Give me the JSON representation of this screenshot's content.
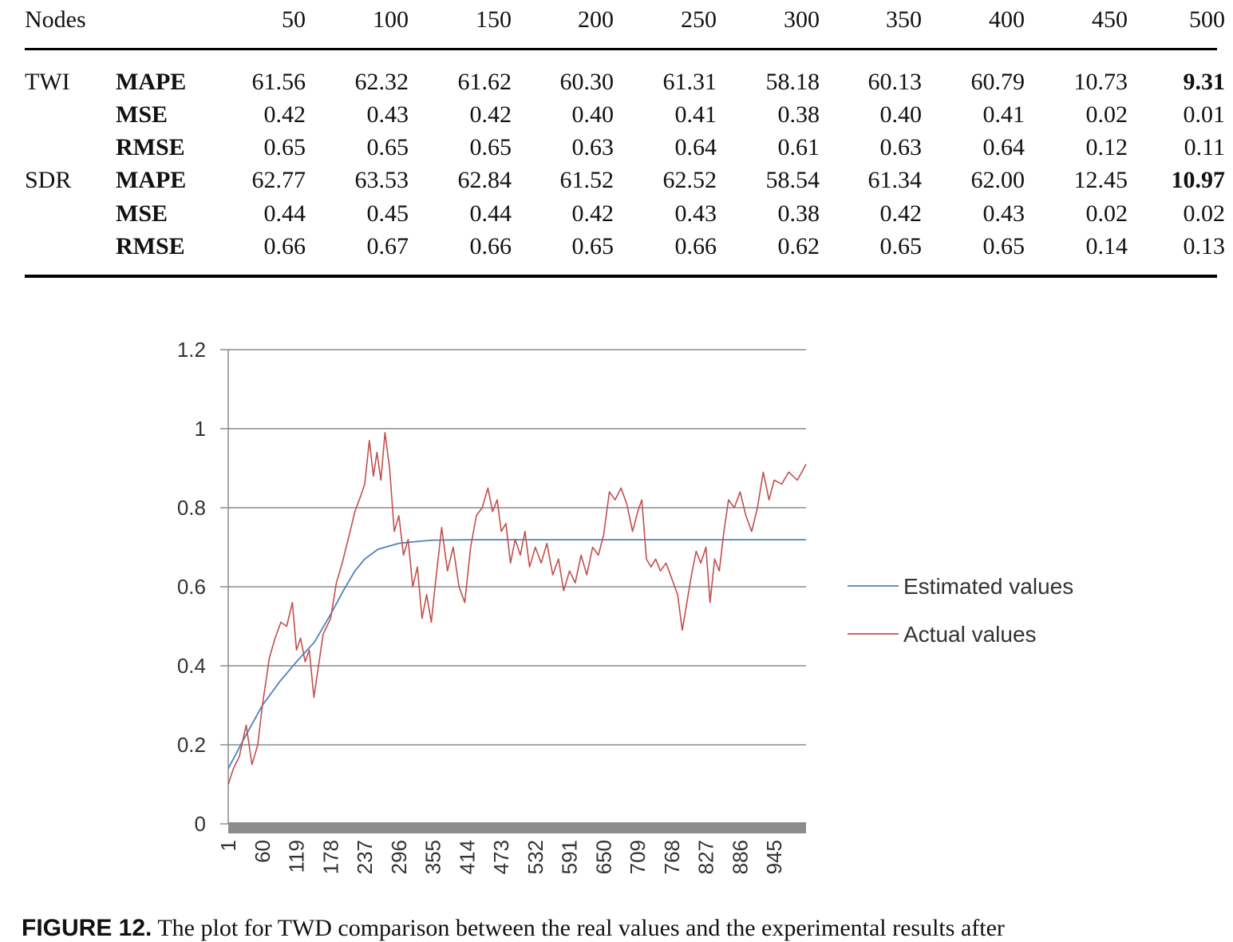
{
  "table": {
    "header": [
      "Nodes",
      "50",
      "100",
      "150",
      "200",
      "250",
      "300",
      "350",
      "400",
      "450",
      "500"
    ],
    "groups": [
      {
        "name": "TWI",
        "rows": [
          {
            "metric": "MAPE",
            "values": [
              "61.56",
              "62.32",
              "61.62",
              "60.30",
              "61.31",
              "58.18",
              "60.13",
              "60.79",
              "10.73",
              "9.31"
            ],
            "bold_last": true
          },
          {
            "metric": "MSE",
            "values": [
              "0.42",
              "0.43",
              "0.42",
              "0.40",
              "0.41",
              "0.38",
              "0.40",
              "0.41",
              "0.02",
              "0.01"
            ],
            "bold_last": false
          },
          {
            "metric": "RMSE",
            "values": [
              "0.65",
              "0.65",
              "0.65",
              "0.63",
              "0.64",
              "0.61",
              "0.63",
              "0.64",
              "0.12",
              "0.11"
            ],
            "bold_last": false
          }
        ]
      },
      {
        "name": "SDR",
        "rows": [
          {
            "metric": "MAPE",
            "values": [
              "62.77",
              "63.53",
              "62.84",
              "61.52",
              "62.52",
              "58.54",
              "61.34",
              "62.00",
              "12.45",
              "10.97"
            ],
            "bold_last": true
          },
          {
            "metric": "MSE",
            "values": [
              "0.44",
              "0.45",
              "0.44",
              "0.42",
              "0.43",
              "0.38",
              "0.42",
              "0.43",
              "0.02",
              "0.02"
            ],
            "bold_last": false
          },
          {
            "metric": "RMSE",
            "values": [
              "0.66",
              "0.67",
              "0.66",
              "0.65",
              "0.66",
              "0.62",
              "0.65",
              "0.65",
              "0.14",
              "0.13"
            ],
            "bold_last": false
          }
        ]
      }
    ]
  },
  "chart_data": {
    "type": "line",
    "xlim": [
      1,
      1000
    ],
    "ylim": [
      0,
      1.2
    ],
    "y_ticks": [
      "0",
      "0.2",
      "0.4",
      "0.6",
      "0.8",
      "1",
      "1.2"
    ],
    "x_ticks": [
      "1",
      "60",
      "119",
      "178",
      "237",
      "296",
      "355",
      "414",
      "473",
      "532",
      "591",
      "650",
      "709",
      "768",
      "827",
      "886",
      "945"
    ],
    "grid": true,
    "legend_position": "right",
    "series": [
      {
        "name": "Estimated values",
        "color": "#4f81bd",
        "points": [
          [
            1,
            0.14
          ],
          [
            30,
            0.22
          ],
          [
            60,
            0.3
          ],
          [
            90,
            0.36
          ],
          [
            119,
            0.41
          ],
          [
            150,
            0.46
          ],
          [
            178,
            0.53
          ],
          [
            200,
            0.59
          ],
          [
            220,
            0.64
          ],
          [
            237,
            0.67
          ],
          [
            260,
            0.695
          ],
          [
            296,
            0.71
          ],
          [
            330,
            0.715
          ],
          [
            355,
            0.718
          ],
          [
            414,
            0.719
          ],
          [
            1000,
            0.719
          ]
        ]
      },
      {
        "name": "Actual values",
        "color": "#c0504d",
        "points": [
          [
            1,
            0.1
          ],
          [
            10,
            0.14
          ],
          [
            20,
            0.17
          ],
          [
            32,
            0.25
          ],
          [
            42,
            0.15
          ],
          [
            52,
            0.2
          ],
          [
            60,
            0.3
          ],
          [
            72,
            0.42
          ],
          [
            82,
            0.47
          ],
          [
            92,
            0.51
          ],
          [
            102,
            0.5
          ],
          [
            112,
            0.56
          ],
          [
            119,
            0.44
          ],
          [
            126,
            0.47
          ],
          [
            134,
            0.41
          ],
          [
            141,
            0.44
          ],
          [
            149,
            0.32
          ],
          [
            157,
            0.4
          ],
          [
            165,
            0.48
          ],
          [
            178,
            0.52
          ],
          [
            188,
            0.61
          ],
          [
            198,
            0.66
          ],
          [
            210,
            0.73
          ],
          [
            220,
            0.79
          ],
          [
            230,
            0.83
          ],
          [
            237,
            0.86
          ],
          [
            245,
            0.97
          ],
          [
            252,
            0.88
          ],
          [
            258,
            0.94
          ],
          [
            265,
            0.87
          ],
          [
            272,
            0.99
          ],
          [
            280,
            0.9
          ],
          [
            288,
            0.74
          ],
          [
            296,
            0.78
          ],
          [
            304,
            0.68
          ],
          [
            312,
            0.72
          ],
          [
            320,
            0.6
          ],
          [
            328,
            0.65
          ],
          [
            336,
            0.52
          ],
          [
            344,
            0.58
          ],
          [
            352,
            0.51
          ],
          [
            360,
            0.62
          ],
          [
            370,
            0.75
          ],
          [
            380,
            0.64
          ],
          [
            390,
            0.7
          ],
          [
            400,
            0.6
          ],
          [
            410,
            0.56
          ],
          [
            420,
            0.7
          ],
          [
            430,
            0.78
          ],
          [
            440,
            0.8
          ],
          [
            450,
            0.85
          ],
          [
            458,
            0.79
          ],
          [
            466,
            0.82
          ],
          [
            473,
            0.74
          ],
          [
            481,
            0.76
          ],
          [
            489,
            0.66
          ],
          [
            497,
            0.72
          ],
          [
            506,
            0.68
          ],
          [
            514,
            0.74
          ],
          [
            522,
            0.65
          ],
          [
            532,
            0.7
          ],
          [
            542,
            0.66
          ],
          [
            552,
            0.71
          ],
          [
            562,
            0.63
          ],
          [
            572,
            0.67
          ],
          [
            581,
            0.59
          ],
          [
            591,
            0.64
          ],
          [
            601,
            0.61
          ],
          [
            611,
            0.68
          ],
          [
            621,
            0.63
          ],
          [
            631,
            0.7
          ],
          [
            641,
            0.68
          ],
          [
            650,
            0.73
          ],
          [
            660,
            0.84
          ],
          [
            670,
            0.82
          ],
          [
            680,
            0.85
          ],
          [
            690,
            0.81
          ],
          [
            700,
            0.74
          ],
          [
            709,
            0.79
          ],
          [
            716,
            0.82
          ],
          [
            724,
            0.67
          ],
          [
            732,
            0.65
          ],
          [
            740,
            0.67
          ],
          [
            748,
            0.64
          ],
          [
            758,
            0.66
          ],
          [
            768,
            0.62
          ],
          [
            778,
            0.58
          ],
          [
            786,
            0.49
          ],
          [
            794,
            0.56
          ],
          [
            802,
            0.63
          ],
          [
            810,
            0.69
          ],
          [
            818,
            0.66
          ],
          [
            827,
            0.7
          ],
          [
            834,
            0.56
          ],
          [
            842,
            0.67
          ],
          [
            850,
            0.64
          ],
          [
            858,
            0.74
          ],
          [
            866,
            0.82
          ],
          [
            876,
            0.8
          ],
          [
            886,
            0.84
          ],
          [
            896,
            0.78
          ],
          [
            906,
            0.74
          ],
          [
            916,
            0.8
          ],
          [
            926,
            0.89
          ],
          [
            936,
            0.82
          ],
          [
            945,
            0.87
          ],
          [
            958,
            0.86
          ],
          [
            970,
            0.89
          ],
          [
            985,
            0.87
          ],
          [
            1000,
            0.91
          ]
        ]
      }
    ]
  },
  "caption": {
    "label": "FIGURE 12.",
    "text": "The plot for TWD comparison between the real values and the experimental results after"
  }
}
